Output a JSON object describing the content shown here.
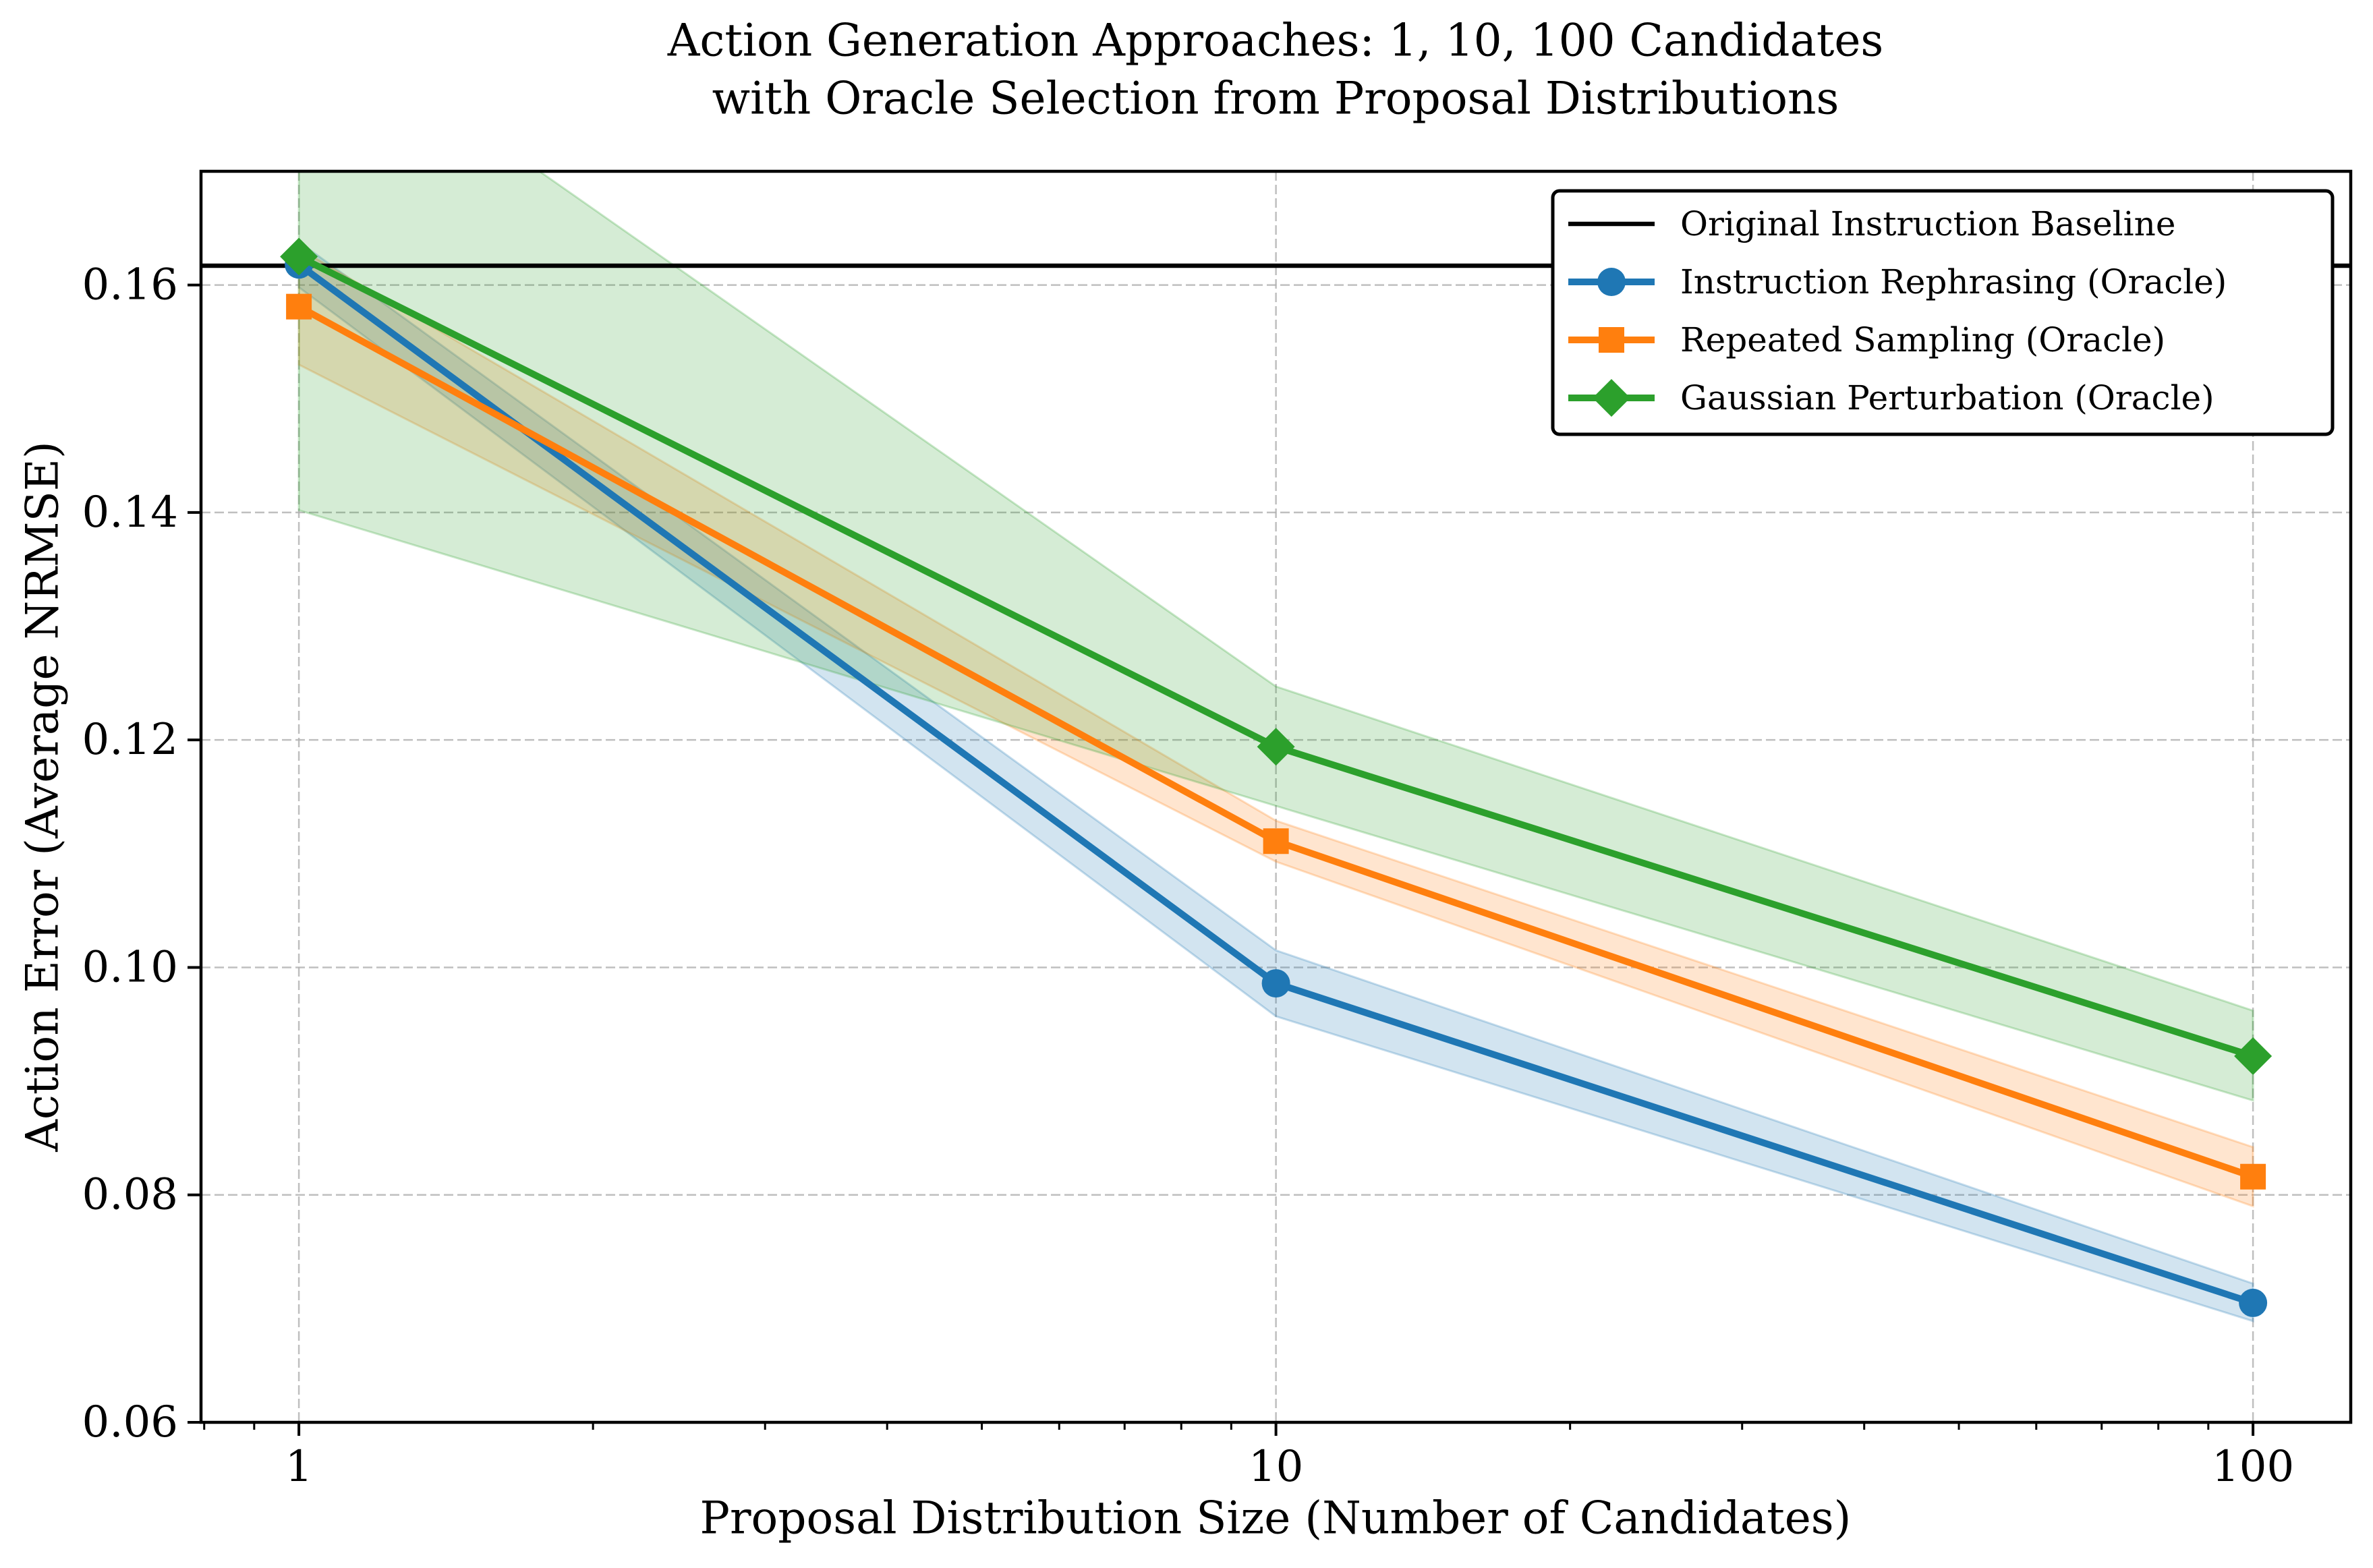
{
  "chart_data": {
    "type": "line",
    "title": [
      "Action Generation Approaches: 1, 10, 100 Candidates",
      "with Oracle Selection from Proposal Distributions"
    ],
    "xlabel": "Proposal Distribution Size (Number of Candidates)",
    "ylabel": "Action Error (Average NRMSE)",
    "xscale": "log",
    "xlim": [
      0.794,
      125.9
    ],
    "ylim": [
      0.06,
      0.17
    ],
    "xticks": [
      1,
      10,
      100
    ],
    "xtick_labels": [
      "1",
      "10",
      "100"
    ],
    "yticks": [
      0.06,
      0.08,
      0.1,
      0.12,
      0.14,
      0.16
    ],
    "ytick_labels": [
      "0.06",
      "0.08",
      "0.10",
      "0.12",
      "0.14",
      "0.16"
    ],
    "grid": true,
    "legend_location": "top-right",
    "baseline": {
      "name": "Original Instruction Baseline",
      "value": 0.1617,
      "color": "#000000"
    },
    "series": [
      {
        "name": "Instruction Rephrasing (Oracle)",
        "color": "#1f77b4",
        "marker": "circle",
        "x": [
          1,
          10,
          100
        ],
        "values": [
          0.1618,
          0.0986,
          0.0705
        ],
        "lower": [
          0.1598,
          0.0957,
          0.0689
        ],
        "upper": [
          0.1638,
          0.1015,
          0.0722
        ]
      },
      {
        "name": "Repeated Sampling (Oracle)",
        "color": "#ff7f0e",
        "marker": "square",
        "x": [
          1,
          10,
          100
        ],
        "values": [
          0.1581,
          0.1111,
          0.0816
        ],
        "lower": [
          0.153,
          0.1093,
          0.079
        ],
        "upper": [
          0.1632,
          0.1129,
          0.0842
        ]
      },
      {
        "name": "Gaussian Perturbation (Oracle)",
        "color": "#2ca02c",
        "marker": "diamond",
        "x": [
          1,
          10,
          100
        ],
        "values": [
          0.1625,
          0.1194,
          0.0922
        ],
        "lower": [
          0.1402,
          0.1142,
          0.0883
        ],
        "upper": [
          0.1848,
          0.1247,
          0.0962
        ]
      }
    ]
  }
}
